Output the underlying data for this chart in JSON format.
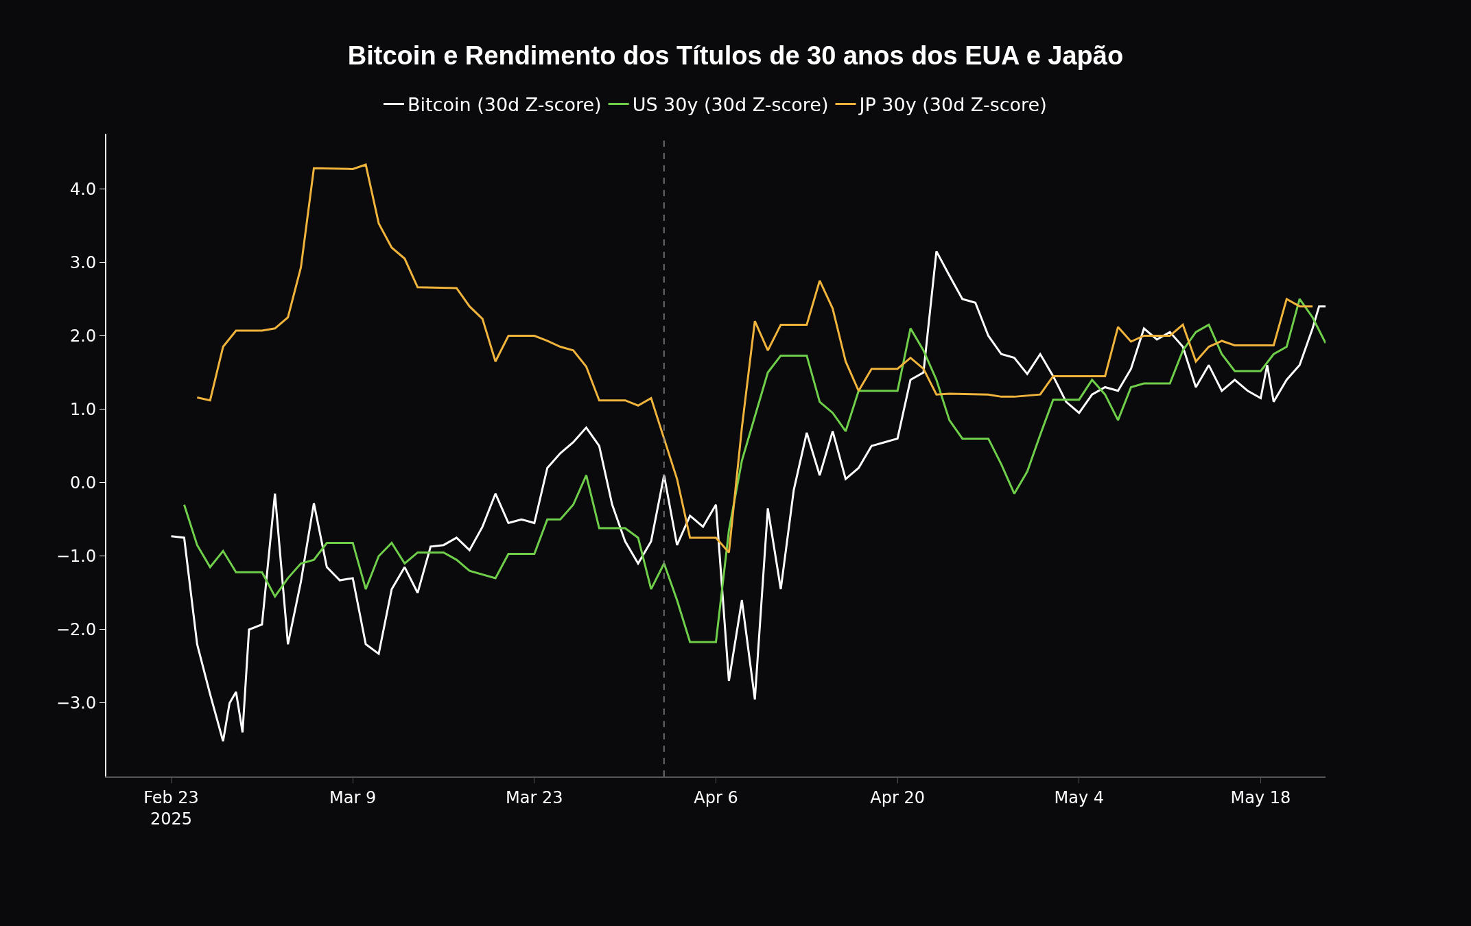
{
  "chart_data": {
    "type": "line",
    "title": "Bitcoin e Rendimento dos Títulos de 30 anos dos EUA e Japão",
    "legend": "top",
    "grid": false,
    "marker": "none",
    "line_style": "solid",
    "xlim": [
      "2025-02-18",
      "2025-05-23"
    ],
    "xticks": [
      {
        "value": "2025-02-23",
        "label": "Feb 23\n2025"
      },
      {
        "value": "2025-03-09",
        "label": "Mar 9"
      },
      {
        "value": "2025-03-23",
        "label": "Mar 23"
      },
      {
        "value": "2025-04-06",
        "label": "Apr 6"
      },
      {
        "value": "2025-04-20",
        "label": "Apr 20"
      },
      {
        "value": "2025-05-04",
        "label": "May 4"
      },
      {
        "value": "2025-05-18",
        "label": "May 18"
      }
    ],
    "ylim": [
      -4,
      4.75
    ],
    "yticks": [
      {
        "value": -3,
        "label": "−3.0"
      },
      {
        "value": -2,
        "label": "−2.0"
      },
      {
        "value": -1,
        "label": "−1.0"
      },
      {
        "value": 0,
        "label": "0.0"
      },
      {
        "value": 1,
        "label": "1.0"
      },
      {
        "value": 2,
        "label": "2.0"
      },
      {
        "value": 3,
        "label": "3.0"
      },
      {
        "value": 4,
        "label": "4.0"
      }
    ],
    "ref_lines": [
      {
        "axis": "x",
        "value": "2025-04-02",
        "color": "#8a8a8a",
        "line_style": "dashed"
      }
    ],
    "series": [
      {
        "name": "Bitcoin (30d Z-score)",
        "color": "#ffffff",
        "x": [
          "2025-02-23",
          "2025-02-24",
          "2025-02-25",
          "2025-02-26",
          "2025-02-27",
          "2025-02-27T12:00",
          "2025-02-28",
          "2025-02-28T12:00",
          "2025-03-01",
          "2025-03-02",
          "2025-03-03",
          "2025-03-04",
          "2025-03-05",
          "2025-03-06",
          "2025-03-07",
          "2025-03-08",
          "2025-03-09",
          "2025-03-10",
          "2025-03-11",
          "2025-03-12",
          "2025-03-13",
          "2025-03-14",
          "2025-03-15",
          "2025-03-16",
          "2025-03-17",
          "2025-03-18",
          "2025-03-19",
          "2025-03-20",
          "2025-03-21",
          "2025-03-22",
          "2025-03-23",
          "2025-03-24",
          "2025-03-25",
          "2025-03-26",
          "2025-03-27",
          "2025-03-28",
          "2025-03-29",
          "2025-03-30",
          "2025-03-31",
          "2025-04-01",
          "2025-04-02",
          "2025-04-03",
          "2025-04-04",
          "2025-04-05",
          "2025-04-06",
          "2025-04-07",
          "2025-04-08",
          "2025-04-09",
          "2025-04-10",
          "2025-04-11",
          "2025-04-12",
          "2025-04-13",
          "2025-04-14",
          "2025-04-15",
          "2025-04-16",
          "2025-04-17",
          "2025-04-18",
          "2025-04-19",
          "2025-04-20",
          "2025-04-21",
          "2025-04-22",
          "2025-04-23",
          "2025-04-24",
          "2025-04-25",
          "2025-04-26",
          "2025-04-27",
          "2025-04-28",
          "2025-04-29",
          "2025-04-30",
          "2025-05-01",
          "2025-05-02",
          "2025-05-03",
          "2025-05-04",
          "2025-05-05",
          "2025-05-06",
          "2025-05-07",
          "2025-05-08",
          "2025-05-09",
          "2025-05-10",
          "2025-05-11",
          "2025-05-12",
          "2025-05-13",
          "2025-05-14",
          "2025-05-15",
          "2025-05-16",
          "2025-05-17",
          "2025-05-18",
          "2025-05-18T12:00",
          "2025-05-19",
          "2025-05-20",
          "2025-05-21",
          "2025-05-22",
          "2025-05-22T12:00",
          "2025-05-23"
        ],
        "values": [
          -0.73,
          -0.75,
          -2.2,
          -2.88,
          -3.52,
          -3.0,
          -2.85,
          -3.4,
          -2.0,
          -1.93,
          -0.15,
          -2.2,
          -1.35,
          -0.28,
          -1.15,
          -1.33,
          -1.3,
          -2.2,
          -2.33,
          -1.45,
          -1.15,
          -1.5,
          -0.87,
          -0.85,
          -0.75,
          -0.92,
          -0.6,
          -0.15,
          -0.55,
          -0.5,
          -0.55,
          0.2,
          0.4,
          0.55,
          0.75,
          0.5,
          -0.3,
          -0.8,
          -1.1,
          -0.8,
          0.1,
          -0.85,
          -0.45,
          -0.6,
          -0.3,
          -2.7,
          -1.6,
          -2.95,
          -0.35,
          -1.45,
          -0.1,
          0.68,
          0.1,
          0.7,
          0.05,
          0.2,
          0.5,
          0.55,
          0.6,
          1.4,
          1.5,
          3.15,
          2.82,
          2.5,
          2.45,
          2.0,
          1.75,
          1.7,
          1.48,
          1.75,
          1.45,
          1.1,
          0.95,
          1.2,
          1.3,
          1.25,
          1.55,
          2.1,
          1.95,
          2.05,
          1.85,
          1.3,
          1.6,
          1.25,
          1.4,
          1.25,
          1.15,
          1.6,
          1.1,
          1.4,
          1.6,
          2.1,
          2.4,
          2.4
        ]
      },
      {
        "name": "US 30y (30d Z-score)",
        "color": "#6fcf4a",
        "x": [
          "2025-02-24",
          "2025-02-25",
          "2025-02-26",
          "2025-02-27",
          "2025-02-28",
          "2025-03-02",
          "2025-03-03",
          "2025-03-04",
          "2025-03-05",
          "2025-03-06",
          "2025-03-07",
          "2025-03-09",
          "2025-03-10",
          "2025-03-11",
          "2025-03-12",
          "2025-03-13",
          "2025-03-14",
          "2025-03-16",
          "2025-03-17",
          "2025-03-18",
          "2025-03-20",
          "2025-03-21",
          "2025-03-23",
          "2025-03-24",
          "2025-03-25",
          "2025-03-26",
          "2025-03-27",
          "2025-03-28",
          "2025-03-30",
          "2025-03-31",
          "2025-04-01",
          "2025-04-02",
          "2025-04-03",
          "2025-04-04",
          "2025-04-06",
          "2025-04-07",
          "2025-04-08",
          "2025-04-09",
          "2025-04-10",
          "2025-04-11",
          "2025-04-13",
          "2025-04-14",
          "2025-04-15",
          "2025-04-16",
          "2025-04-17",
          "2025-04-20",
          "2025-04-21",
          "2025-04-22",
          "2025-04-23",
          "2025-04-24",
          "2025-04-25",
          "2025-04-27",
          "2025-04-28",
          "2025-04-29",
          "2025-04-30",
          "2025-05-01",
          "2025-05-02",
          "2025-05-04",
          "2025-05-05",
          "2025-05-06",
          "2025-05-07",
          "2025-05-08",
          "2025-05-09",
          "2025-05-11",
          "2025-05-12",
          "2025-05-13",
          "2025-05-14",
          "2025-05-15",
          "2025-05-16",
          "2025-05-18",
          "2025-05-19",
          "2025-05-20",
          "2025-05-21",
          "2025-05-22",
          "2025-05-23"
        ],
        "values": [
          -0.3,
          -0.85,
          -1.15,
          -0.93,
          -1.22,
          -1.22,
          -1.55,
          -1.3,
          -1.1,
          -1.05,
          -0.82,
          -0.82,
          -1.45,
          -1.0,
          -0.82,
          -1.1,
          -0.95,
          -0.95,
          -1.05,
          -1.2,
          -1.3,
          -0.97,
          -0.97,
          -0.5,
          -0.5,
          -0.3,
          0.1,
          -0.62,
          -0.62,
          -0.75,
          -1.45,
          -1.1,
          -1.6,
          -2.17,
          -2.17,
          -0.65,
          0.3,
          0.9,
          1.5,
          1.73,
          1.73,
          1.1,
          0.95,
          0.7,
          1.25,
          1.25,
          2.1,
          1.8,
          1.4,
          0.85,
          0.6,
          0.6,
          0.25,
          -0.15,
          0.15,
          0.65,
          1.13,
          1.13,
          1.4,
          1.2,
          0.85,
          1.3,
          1.35,
          1.35,
          1.8,
          2.05,
          2.15,
          1.75,
          1.52,
          1.52,
          1.75,
          1.85,
          2.5,
          2.25,
          1.9
        ]
      },
      {
        "name": "JP 30y (30d Z-score)",
        "color": "#f0b43c",
        "x": [
          "2025-02-25",
          "2025-02-26",
          "2025-02-27",
          "2025-02-28",
          "2025-03-02",
          "2025-03-03",
          "2025-03-04",
          "2025-03-05",
          "2025-03-06",
          "2025-03-09",
          "2025-03-10",
          "2025-03-11",
          "2025-03-12",
          "2025-03-13",
          "2025-03-14",
          "2025-03-17",
          "2025-03-18",
          "2025-03-19",
          "2025-03-20",
          "2025-03-21",
          "2025-03-23",
          "2025-03-24",
          "2025-03-25",
          "2025-03-26",
          "2025-03-27",
          "2025-03-28",
          "2025-03-30",
          "2025-03-31",
          "2025-04-01",
          "2025-04-02",
          "2025-04-03",
          "2025-04-04",
          "2025-04-06",
          "2025-04-07",
          "2025-04-08",
          "2025-04-09",
          "2025-04-10",
          "2025-04-11",
          "2025-04-13",
          "2025-04-14",
          "2025-04-15",
          "2025-04-16",
          "2025-04-17",
          "2025-04-18",
          "2025-04-20",
          "2025-04-21",
          "2025-04-22",
          "2025-04-23",
          "2025-04-24",
          "2025-04-27",
          "2025-04-28",
          "2025-04-29",
          "2025-05-01",
          "2025-05-02",
          "2025-05-06",
          "2025-05-07",
          "2025-05-08",
          "2025-05-09",
          "2025-05-11",
          "2025-05-12",
          "2025-05-13",
          "2025-05-14",
          "2025-05-15",
          "2025-05-16",
          "2025-05-19",
          "2025-05-20",
          "2025-05-21",
          "2025-05-22"
        ],
        "values": [
          1.16,
          1.12,
          1.85,
          2.07,
          2.07,
          2.1,
          2.25,
          2.93,
          4.28,
          4.27,
          4.33,
          3.53,
          3.2,
          3.05,
          2.66,
          2.65,
          2.4,
          2.23,
          1.65,
          2.0,
          2.0,
          1.93,
          1.85,
          1.8,
          1.58,
          1.12,
          1.12,
          1.05,
          1.15,
          0.6,
          0.05,
          -0.75,
          -0.75,
          -0.95,
          0.75,
          2.2,
          1.8,
          2.15,
          2.15,
          2.75,
          2.37,
          1.65,
          1.25,
          1.55,
          1.55,
          1.7,
          1.55,
          1.2,
          1.21,
          1.2,
          1.17,
          1.17,
          1.2,
          1.45,
          1.45,
          2.12,
          1.92,
          2.0,
          2.0,
          2.15,
          1.65,
          1.85,
          1.93,
          1.87,
          1.87,
          2.5,
          2.4,
          2.4
        ]
      }
    ]
  }
}
